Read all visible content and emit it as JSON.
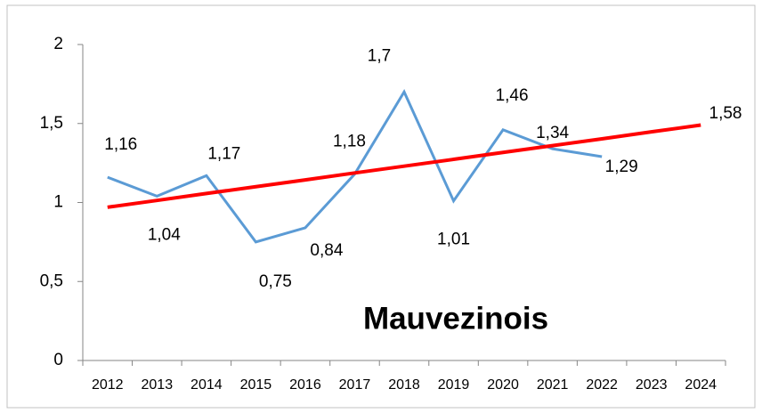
{
  "chart_data": {
    "type": "line",
    "title": "Mauvezinois",
    "categories": [
      "2012",
      "2013",
      "2014",
      "2015",
      "2016",
      "2017",
      "2018",
      "2019",
      "2020",
      "2021",
      "2022",
      "2023",
      "2024"
    ],
    "series": [
      {
        "name": "Mauvezinois",
        "color": "#5b9bd5",
        "values": [
          1.16,
          1.04,
          1.17,
          0.75,
          0.84,
          1.18,
          1.7,
          1.01,
          1.46,
          1.34,
          1.29,
          null,
          null
        ],
        "value_labels": [
          "1,16",
          "1,04",
          "1,17",
          "0,75",
          "0,84",
          "1,18",
          "1,7",
          "1,01",
          "1,46",
          "1,34",
          "1,29",
          null,
          null
        ]
      },
      {
        "name": "Tendance",
        "color": "#ff0000",
        "values": [
          0.97,
          1.013,
          1.057,
          1.1,
          1.143,
          1.187,
          1.23,
          1.273,
          1.317,
          1.36,
          1.403,
          1.447,
          1.49
        ]
      }
    ],
    "annotations": [
      "1,58"
    ],
    "ylim": [
      0,
      2
    ],
    "yticks": [
      0,
      {
        "value": 0.5,
        "label": "0,5"
      },
      1,
      {
        "value": 1.5,
        "label": "1,5"
      },
      2
    ]
  }
}
